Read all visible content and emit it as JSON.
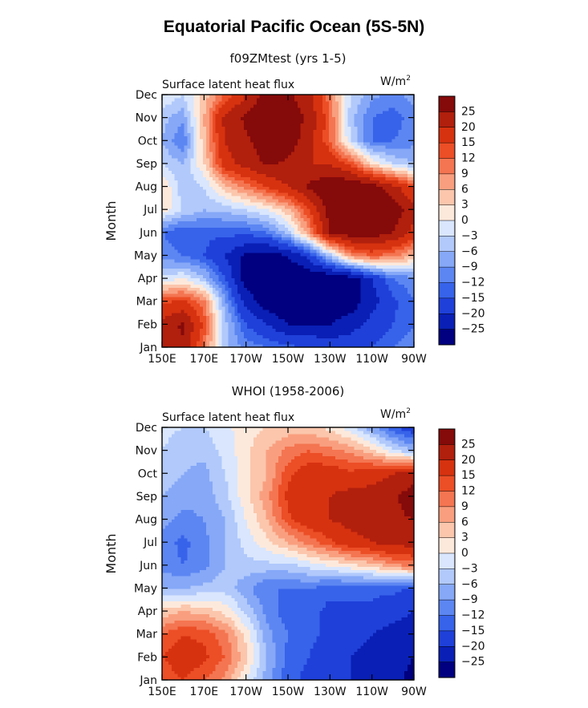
{
  "title": "Equatorial Pacific Ocean (5S-5N)",
  "colors": {
    "levels": [
      "#000080",
      "#0a1fb5",
      "#1f40d9",
      "#3763ea",
      "#5c86f2",
      "#86a8f7",
      "#b1c9fb",
      "#d9e6fd",
      "#fde9dc",
      "#fbc6ac",
      "#f99f7f",
      "#f47551",
      "#ec4e26",
      "#d63210",
      "#b11f0d",
      "#850a0a"
    ]
  },
  "chart_data": [
    {
      "type": "heatmap",
      "subtitle": "f09ZMtest (yrs 1-5)",
      "left_label": "Surface latent heat flux",
      "units": "W/m",
      "units_sup": "2",
      "ylabel": "Month",
      "x_ticks": [
        "150E",
        "170E",
        "170W",
        "150W",
        "130W",
        "110W",
        "90W"
      ],
      "x_values": [
        150,
        170,
        190,
        210,
        230,
        250,
        270
      ],
      "xlim": [
        150,
        270
      ],
      "y_ticks": [
        "Jan",
        "Feb",
        "Mar",
        "Apr",
        "May",
        "Jun",
        "Jul",
        "Aug",
        "Sep",
        "Oct",
        "Nov",
        "Dec"
      ],
      "levels": [
        "25",
        "20",
        "15",
        "12",
        "9",
        "6",
        "3",
        "0",
        "-3",
        "-6",
        "-9",
        "-12",
        "-15",
        "-20",
        "-25"
      ],
      "months": [
        1,
        2,
        3,
        4,
        5,
        6,
        7,
        8,
        9,
        10,
        11,
        12
      ],
      "grid": [
        [
          20,
          24,
          10,
          -5,
          -10,
          -12,
          -14,
          -15,
          -16,
          -17,
          -15,
          -12,
          -10
        ],
        [
          22,
          26,
          14,
          -5,
          -15,
          -20,
          -25,
          -25,
          -25,
          -22,
          -18,
          -15,
          -12
        ],
        [
          14,
          16,
          10,
          -8,
          -22,
          -28,
          -30,
          -30,
          -30,
          -28,
          -22,
          -16,
          -12
        ],
        [
          -2,
          0,
          -5,
          -15,
          -28,
          -30,
          -30,
          -30,
          -30,
          -28,
          -20,
          -12,
          -10
        ],
        [
          -10,
          -12,
          -15,
          -20,
          -26,
          -28,
          -25,
          -18,
          -5,
          8,
          12,
          10,
          5
        ],
        [
          -12,
          -15,
          -14,
          -14,
          -14,
          -12,
          -5,
          8,
          25,
          28,
          28,
          25,
          18
        ],
        [
          2,
          -3,
          -6,
          -5,
          -3,
          0,
          5,
          15,
          28,
          30,
          30,
          28,
          22
        ],
        [
          3,
          -5,
          -3,
          5,
          10,
          15,
          20,
          26,
          30,
          30,
          28,
          22,
          15
        ],
        [
          -3,
          -6,
          3,
          18,
          22,
          26,
          24,
          20,
          20,
          14,
          3,
          -3,
          -6
        ],
        [
          -6,
          -12,
          5,
          20,
          24,
          28,
          28,
          22,
          12,
          -3,
          -12,
          -12,
          -10
        ],
        [
          -5,
          -8,
          6,
          22,
          26,
          30,
          28,
          24,
          12,
          -5,
          -12,
          -14,
          -10
        ],
        [
          0,
          -3,
          4,
          12,
          20,
          28,
          26,
          22,
          10,
          -3,
          -8,
          -10,
          -8
        ]
      ]
    },
    {
      "type": "heatmap",
      "subtitle": "WHOI (1958-2006)",
      "left_label": "Surface latent heat flux",
      "units": "W/m",
      "units_sup": "2",
      "ylabel": "Month",
      "x_ticks": [
        "150E",
        "170E",
        "170W",
        "150W",
        "130W",
        "110W",
        "90W"
      ],
      "x_values": [
        150,
        170,
        190,
        210,
        230,
        250,
        270
      ],
      "xlim": [
        150,
        270
      ],
      "y_ticks": [
        "Jan",
        "Feb",
        "Mar",
        "Apr",
        "May",
        "Jun",
        "Jul",
        "Aug",
        "Sep",
        "Oct",
        "Nov",
        "Dec"
      ],
      "levels": [
        "25",
        "20",
        "15",
        "12",
        "9",
        "6",
        "3",
        "0",
        "-3",
        "-6",
        "-9",
        "-12",
        "-15",
        "-20",
        "-25"
      ],
      "months": [
        1,
        2,
        3,
        4,
        5,
        6,
        7,
        8,
        9,
        10,
        11,
        12
      ],
      "grid": [
        [
          12,
          15,
          12,
          8,
          0,
          -8,
          -14,
          -16,
          -18,
          -20,
          -22,
          -24,
          -26
        ],
        [
          15,
          18,
          16,
          12,
          4,
          -6,
          -13,
          -15,
          -18,
          -20,
          -22,
          -24,
          -25
        ],
        [
          12,
          15,
          14,
          10,
          2,
          -8,
          -12,
          -14,
          -16,
          -18,
          -20,
          -22,
          -24
        ],
        [
          4,
          6,
          5,
          2,
          -4,
          -10,
          -14,
          -14,
          -16,
          -16,
          -16,
          -18,
          -20
        ],
        [
          -6,
          -6,
          -5,
          -4,
          -8,
          -12,
          -12,
          -12,
          -14,
          -14,
          -14,
          -14,
          -16
        ],
        [
          -10,
          -12,
          -10,
          -6,
          -4,
          -4,
          -4,
          -2,
          0,
          2,
          4,
          8,
          10
        ],
        [
          -10,
          -13,
          -10,
          -6,
          -2,
          2,
          6,
          10,
          14,
          18,
          20,
          22,
          22
        ],
        [
          -8,
          -10,
          -9,
          -6,
          0,
          6,
          14,
          18,
          20,
          22,
          22,
          24,
          25
        ],
        [
          -6,
          -8,
          -8,
          -4,
          2,
          8,
          16,
          20,
          20,
          22,
          22,
          24,
          28
        ],
        [
          -4,
          -6,
          -7,
          -3,
          2,
          6,
          14,
          18,
          18,
          16,
          18,
          20,
          22
        ],
        [
          -3,
          -5,
          -5,
          -2,
          2,
          6,
          10,
          12,
          10,
          8,
          4,
          -2,
          -6
        ],
        [
          -2,
          -3,
          -3,
          -1,
          2,
          3,
          4,
          4,
          2,
          -2,
          -8,
          -14,
          -18
        ]
      ]
    }
  ]
}
